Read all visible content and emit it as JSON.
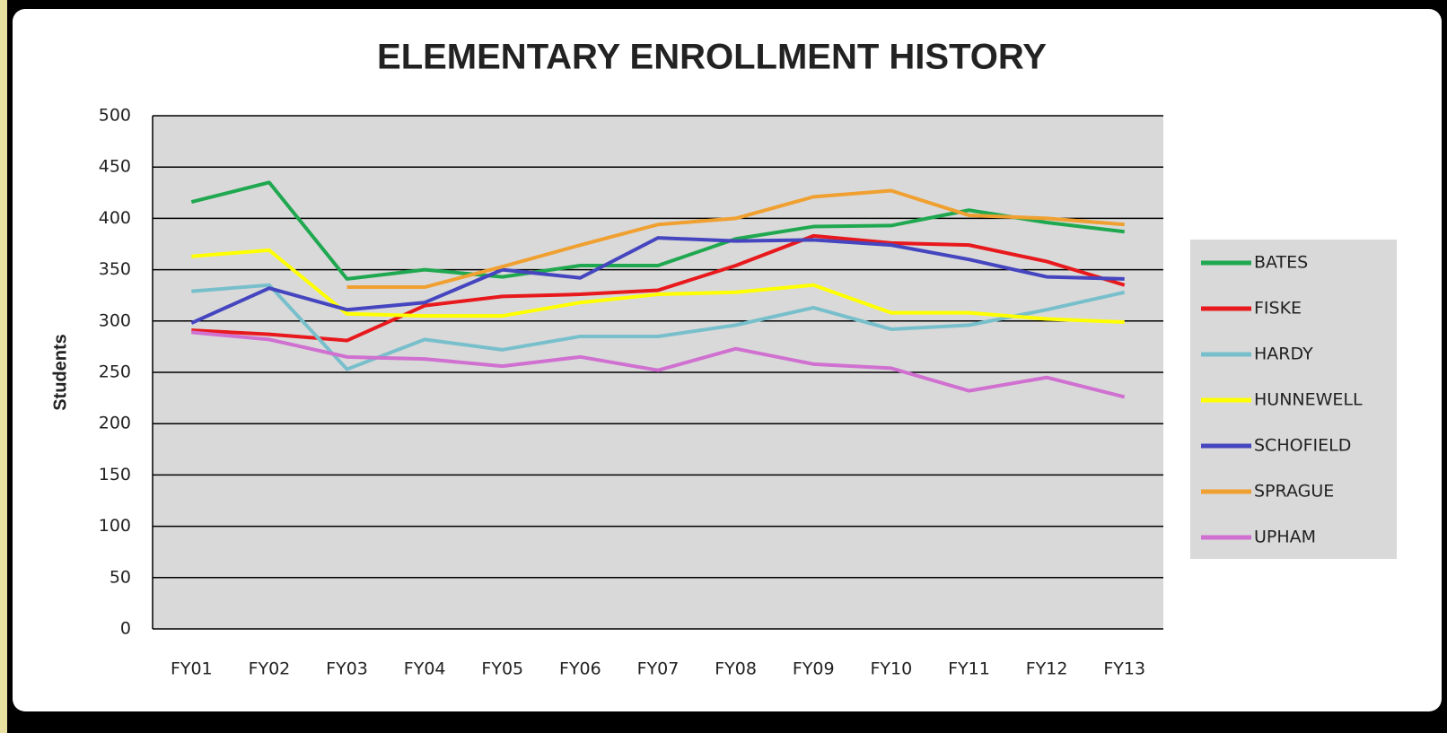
{
  "chart_data": {
    "type": "line",
    "title": "ELEMENTARY ENROLLMENT HISTORY",
    "y_label": "Students",
    "categories": [
      "FY01",
      "FY02",
      "FY03",
      "FY04",
      "FY05",
      "FY06",
      "FY07",
      "FY08",
      "FY09",
      "FY10",
      "FY11",
      "FY12",
      "FY13"
    ],
    "series": [
      {
        "name": "BATES",
        "color": "#1fa84f",
        "values": [
          416,
          435,
          341,
          350,
          343,
          354,
          354,
          380,
          392,
          393,
          408,
          396,
          387
        ]
      },
      {
        "name": "FISKE",
        "color": "#e8191c",
        "values": [
          291,
          287,
          281,
          315,
          324,
          326,
          330,
          354,
          383,
          376,
          374,
          358,
          335
        ]
      },
      {
        "name": "HARDY",
        "color": "#78bfcc",
        "values": [
          329,
          335,
          253,
          282,
          272,
          285,
          285,
          296,
          313,
          292,
          296,
          311,
          328
        ]
      },
      {
        "name": "HUNNEWELL",
        "color": "#ffff00",
        "values": [
          363,
          369,
          307,
          305,
          305,
          318,
          326,
          328,
          335,
          308,
          308,
          302,
          299
        ]
      },
      {
        "name": "SCHOFIELD",
        "color": "#4545c0",
        "values": [
          298,
          332,
          311,
          318,
          350,
          342,
          381,
          378,
          379,
          374,
          360,
          343,
          341
        ]
      },
      {
        "name": "SPRAGUE",
        "color": "#f0a030",
        "values": [
          null,
          null,
          333,
          333,
          353,
          374,
          394,
          400,
          421,
          427,
          403,
          400,
          394
        ]
      },
      {
        "name": "UPHAM",
        "color": "#d070d0",
        "values": [
          289,
          282,
          265,
          263,
          256,
          265,
          252,
          273,
          258,
          254,
          232,
          245,
          226
        ]
      }
    ],
    "ylim": [
      0,
      500
    ],
    "yticks": [
      0,
      50,
      100,
      150,
      200,
      250,
      300,
      350,
      400,
      450,
      500
    ],
    "grid": true,
    "legend": "right"
  }
}
